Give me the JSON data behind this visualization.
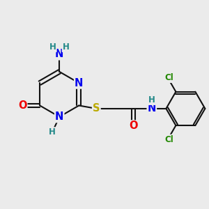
{
  "background_color": "#ebebeb",
  "atom_colors": {
    "C": "#000000",
    "N": "#0000ee",
    "O": "#ee0000",
    "S": "#bbaa00",
    "Cl": "#228800",
    "H": "#228888"
  },
  "bond_color": "#111111",
  "bond_width": 1.5,
  "font_size_atom": 10.5,
  "font_size_small": 8.5
}
